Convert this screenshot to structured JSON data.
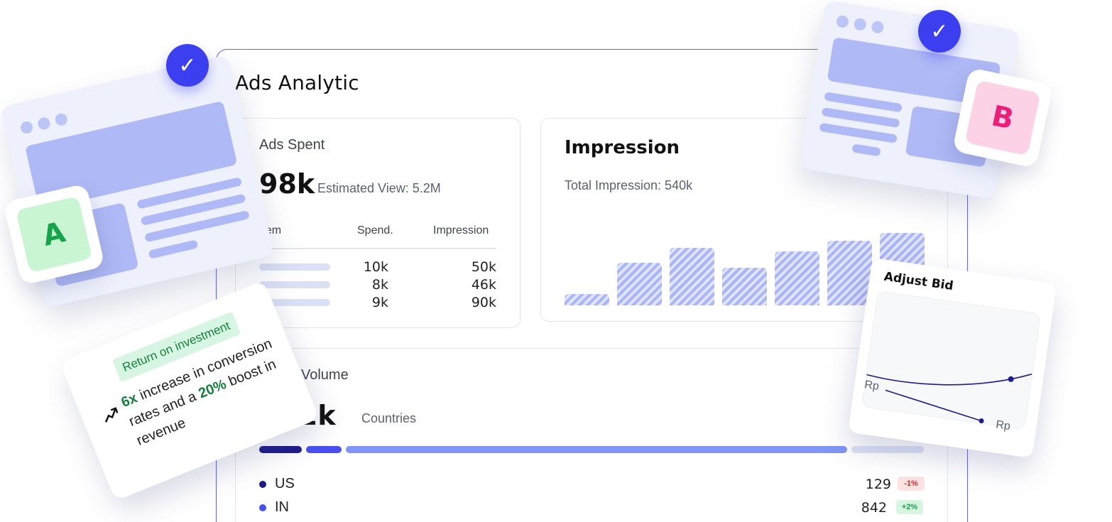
{
  "page": {
    "title": "Ads Analytic"
  },
  "ads_spent": {
    "title": "Ads Spent",
    "value": "98k",
    "estimated_label": "Estimated  View: 5.2M",
    "columns": [
      "Item",
      "Spend.",
      "Impression"
    ],
    "rows": [
      {
        "spend": "10k",
        "impression": "50k"
      },
      {
        "spend": "8k",
        "impression": "46k"
      },
      {
        "spend": "9k",
        "impression": "90k"
      }
    ]
  },
  "impression": {
    "title": "Impression",
    "subtitle": "Total Impression: 540k",
    "bars": [
      0.15,
      0.57,
      0.77,
      0.5,
      0.72,
      0.87,
      0.97
    ]
  },
  "volume": {
    "title": "Volume",
    "value": "6.2k",
    "countries_label": "Countries",
    "segment_colors": [
      "#1e1b8a",
      "#4a4ff0",
      "#7f96f5",
      "#dde2f4"
    ],
    "countries": [
      {
        "name": "US",
        "value": "129",
        "change": "-1%",
        "dot": "#1e1b8a",
        "badge_bg": "#fde2e2",
        "badge_fg": "#dc2626"
      },
      {
        "name": "IN",
        "value": "842",
        "change": "+2%",
        "dot": "#4a4ff0",
        "badge_bg": "#d8f5e2",
        "badge_fg": "#16a34a"
      }
    ]
  },
  "variant_a": {
    "label": "A"
  },
  "variant_b": {
    "label": "B"
  },
  "roi": {
    "badge": "Return on investment",
    "text_multiplier": "6x",
    "text_part1": " increase in conversion rates and a ",
    "text_percent": "20%",
    "text_part2": " boost in revenue"
  },
  "adjust_bid": {
    "title": "Adjust Bid",
    "left_axis_label": "Rp",
    "right_axis_label": "Rp"
  },
  "colors": {
    "accent": "#3b3ff0",
    "outline": "#6366f1"
  }
}
